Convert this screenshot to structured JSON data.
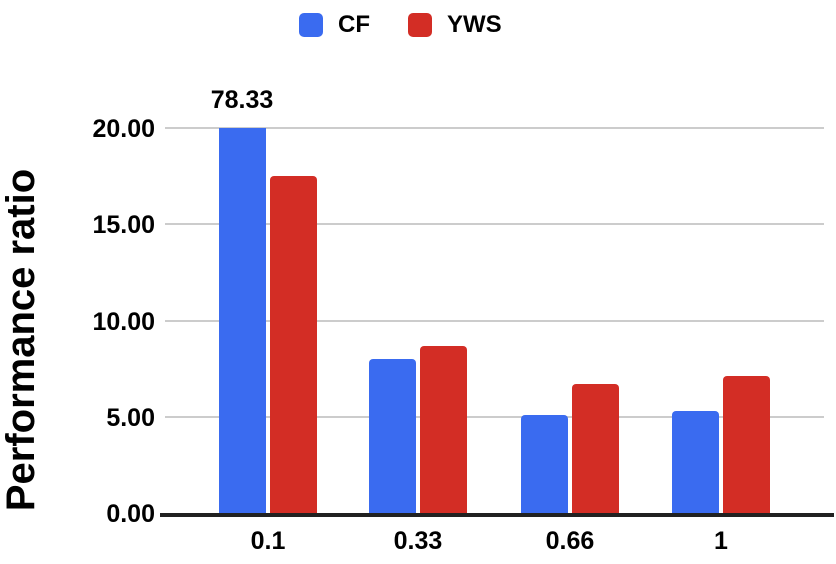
{
  "chart_data": {
    "type": "bar",
    "title": "",
    "xlabel": "",
    "ylabel": "Performance ratio",
    "categories": [
      "0.1",
      "0.33",
      "0.66",
      "1"
    ],
    "series": [
      {
        "name": "CF",
        "color": "#3A6BF0",
        "values": [
          78.33,
          8.0,
          5.1,
          5.3
        ]
      },
      {
        "name": "YWS",
        "color": "#D32D25",
        "values": [
          17.5,
          8.7,
          6.7,
          7.1
        ]
      }
    ],
    "ylim": [
      0,
      20
    ],
    "yticks": [
      0,
      5,
      10,
      15,
      20
    ],
    "ytick_labels": [
      "0.00",
      "5.00",
      "10.00",
      "15.00",
      "20.00"
    ],
    "grid": true,
    "legend_position": "top",
    "annotations": [
      {
        "text": "78.33",
        "series": "CF",
        "category": "0.1",
        "note": "bar exceeds y-axis max and is clipped at 20.00"
      }
    ],
    "colors": {
      "background": "#FFFFFF",
      "text": "#000000",
      "gridline": "#CCCCCC",
      "baseline": "#212121"
    }
  }
}
